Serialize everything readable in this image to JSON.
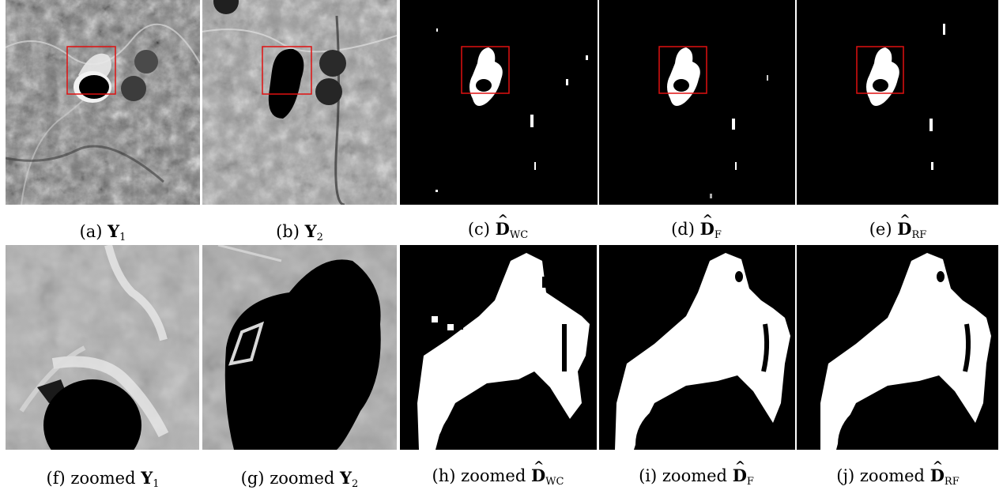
{
  "figure": {
    "top_row": [
      {
        "label": "(a)",
        "prefix": "",
        "symbol": "Y",
        "hat": "",
        "subscript": "1"
      },
      {
        "label": "(b)",
        "prefix": "",
        "symbol": "Y",
        "hat": "",
        "subscript": "2"
      },
      {
        "label": "(c)",
        "prefix": "",
        "symbol": "D",
        "hat": "^",
        "subscript": "WC"
      },
      {
        "label": "(d)",
        "prefix": "",
        "symbol": "D",
        "hat": "^",
        "subscript": "F"
      },
      {
        "label": "(e)",
        "prefix": "",
        "symbol": "D",
        "hat": "^",
        "subscript": "RF"
      }
    ],
    "bottom_row": [
      {
        "label": "(f)",
        "prefix": "zoomed",
        "symbol": "Y",
        "hat": "",
        "subscript": "1"
      },
      {
        "label": "(g)",
        "prefix": "zoomed",
        "symbol": "Y",
        "hat": "",
        "subscript": "2"
      },
      {
        "label": "(h)",
        "prefix": "zoomed",
        "symbol": "D",
        "hat": "^",
        "subscript": "WC"
      },
      {
        "label": "(i)",
        "prefix": "zoomed",
        "symbol": "D",
        "hat": "^",
        "subscript": "F"
      },
      {
        "label": "(j)",
        "prefix": "zoomed",
        "symbol": "D",
        "hat": "^",
        "subscript": "RF"
      }
    ]
  },
  "colors": {
    "roi_box": "#e01010",
    "background": "#ffffff",
    "change_map_bg": "#000000",
    "change_map_fg": "#ffffff"
  }
}
